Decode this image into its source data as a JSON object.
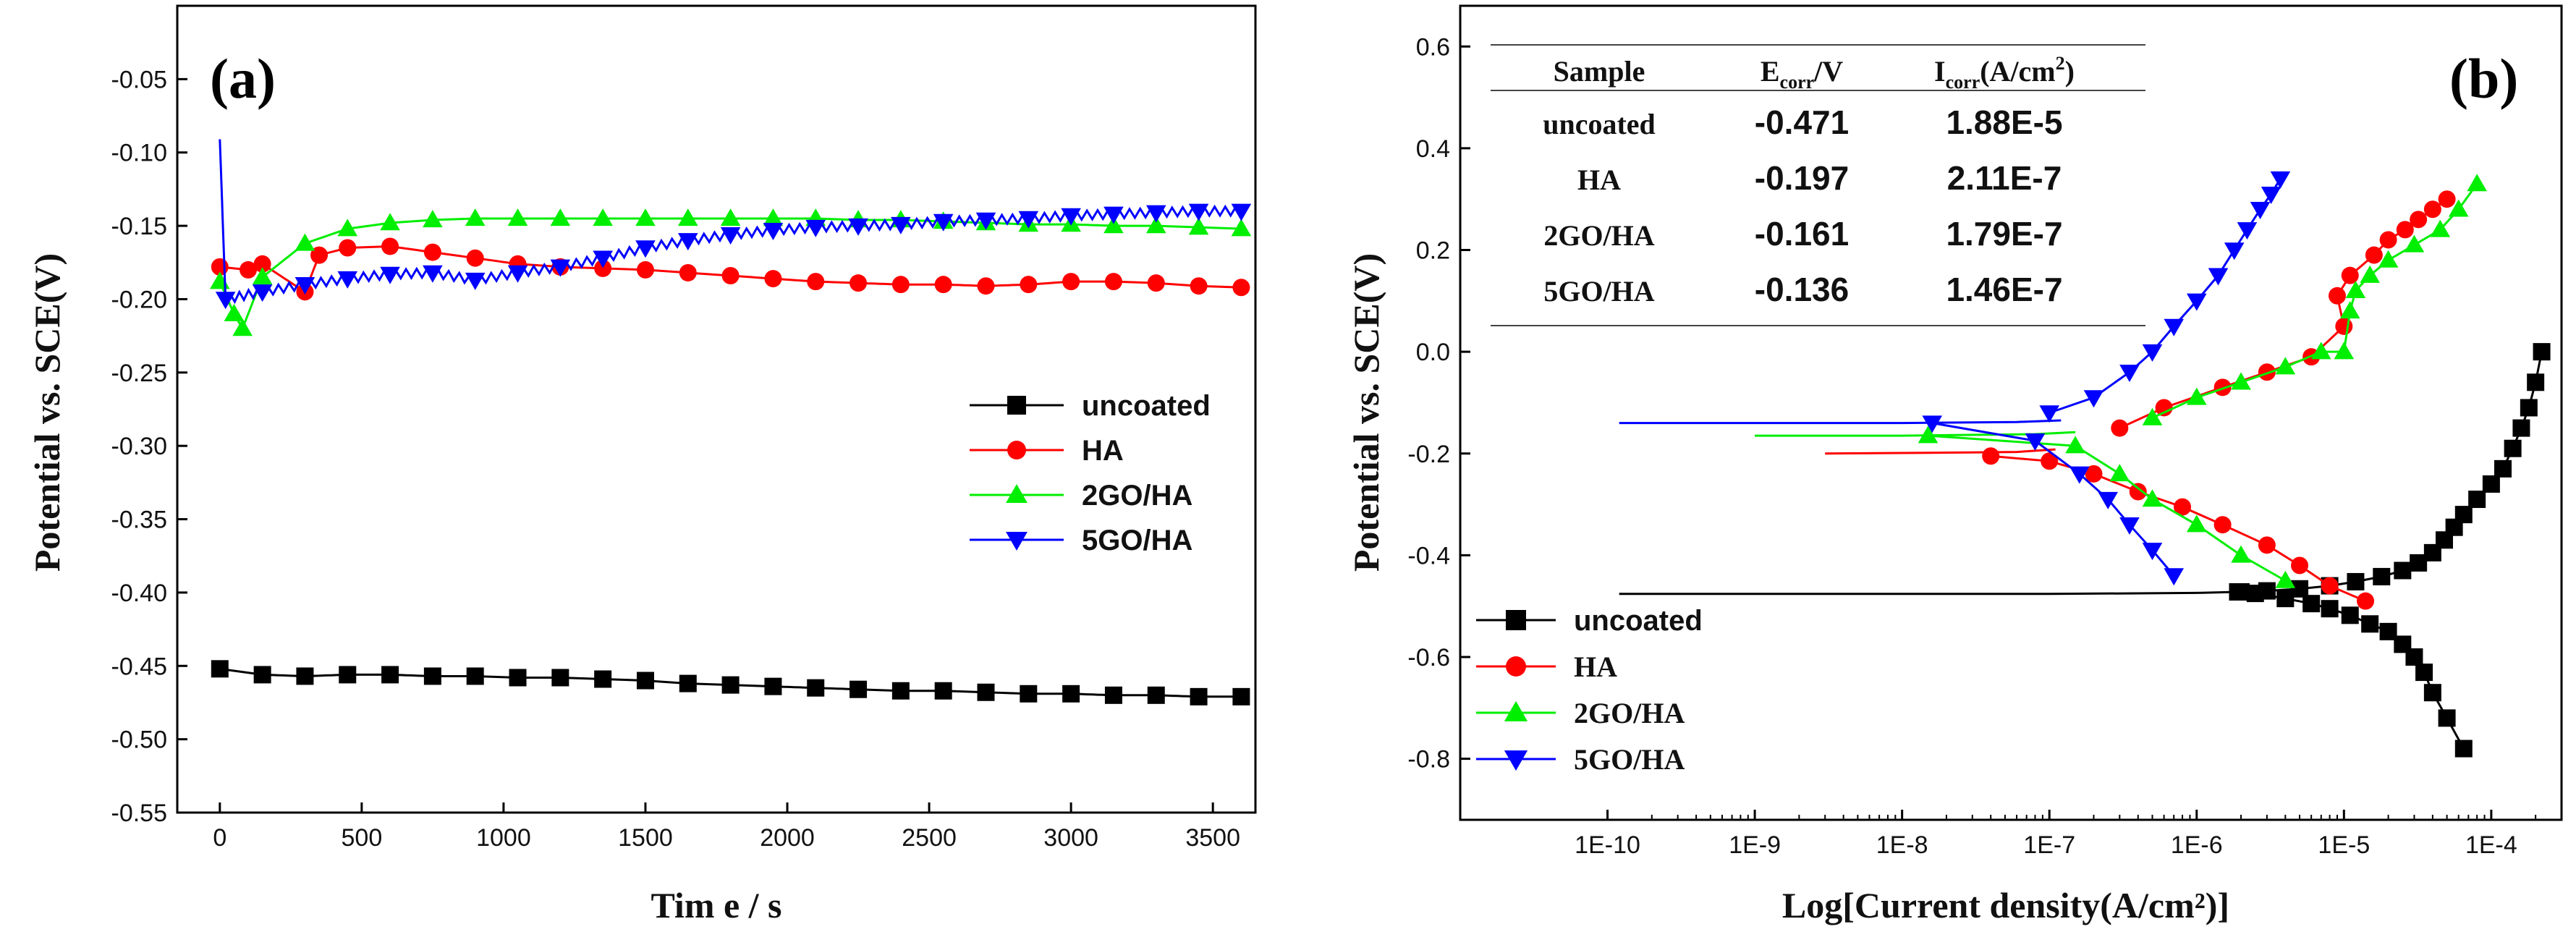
{
  "chart_data": [
    {
      "type": "line",
      "panel_label": "(a)",
      "xlabel": "Tim e / s",
      "ylabel": "Potential vs. SCE(V)",
      "xlim": [
        -150,
        3650
      ],
      "ylim": [
        -0.55,
        0.0
      ],
      "xticks": [
        0,
        500,
        1000,
        1500,
        2000,
        2500,
        3000,
        3500
      ],
      "xtick_labels": [
        "0",
        "500",
        "1000",
        "1500",
        "2000",
        "2500",
        "3000",
        "3500"
      ],
      "yticks": [
        -0.05,
        -0.1,
        -0.15,
        -0.2,
        -0.25,
        -0.3,
        -0.35,
        -0.4,
        -0.45,
        -0.5,
        -0.55
      ],
      "ytick_labels": [
        "-0.05",
        "-0.10",
        "-0.15",
        "-0.20",
        "-0.25",
        "-0.30",
        "-0.35",
        "-0.40",
        "-0.45",
        "-0.50",
        "-0.55"
      ],
      "legend": "lower-right",
      "series": [
        {
          "name": "uncoated",
          "color": "#000000",
          "marker": "square",
          "x": [
            0,
            150,
            300,
            450,
            600,
            750,
            900,
            1050,
            1200,
            1350,
            1500,
            1650,
            1800,
            1950,
            2100,
            2250,
            2400,
            2550,
            2700,
            2850,
            3000,
            3150,
            3300,
            3450,
            3600
          ],
          "y": [
            -0.452,
            -0.456,
            -0.457,
            -0.456,
            -0.456,
            -0.457,
            -0.457,
            -0.458,
            -0.458,
            -0.459,
            -0.46,
            -0.462,
            -0.463,
            -0.464,
            -0.465,
            -0.466,
            -0.467,
            -0.467,
            -0.468,
            -0.469,
            -0.469,
            -0.47,
            -0.47,
            -0.471,
            -0.471
          ]
        },
        {
          "name": "HA",
          "color": "#ff0000",
          "marker": "circle",
          "x": [
            0,
            100,
            150,
            300,
            350,
            450,
            600,
            750,
            900,
            1050,
            1200,
            1350,
            1500,
            1650,
            1800,
            1950,
            2100,
            2250,
            2400,
            2550,
            2700,
            2850,
            3000,
            3150,
            3300,
            3450,
            3600
          ],
          "y": [
            -0.178,
            -0.18,
            -0.176,
            -0.195,
            -0.17,
            -0.165,
            -0.164,
            -0.168,
            -0.172,
            -0.176,
            -0.178,
            -0.179,
            -0.18,
            -0.182,
            -0.184,
            -0.186,
            -0.188,
            -0.189,
            -0.19,
            -0.19,
            -0.191,
            -0.19,
            -0.188,
            -0.188,
            -0.189,
            -0.191,
            -0.192
          ]
        },
        {
          "name": "2GO/HA",
          "color": "#00ee00",
          "marker": "triangle-up",
          "x": [
            0,
            50,
            80,
            150,
            300,
            450,
            600,
            750,
            900,
            1050,
            1200,
            1350,
            1500,
            1650,
            1800,
            1950,
            2100,
            2250,
            2400,
            2550,
            2700,
            2850,
            3000,
            3150,
            3300,
            3450,
            3600
          ],
          "y": [
            -0.188,
            -0.21,
            -0.22,
            -0.185,
            -0.162,
            -0.152,
            -0.148,
            -0.146,
            -0.145,
            -0.145,
            -0.145,
            -0.145,
            -0.145,
            -0.145,
            -0.145,
            -0.145,
            -0.145,
            -0.146,
            -0.146,
            -0.147,
            -0.148,
            -0.149,
            -0.149,
            -0.15,
            -0.15,
            -0.151,
            -0.152
          ]
        },
        {
          "name": "5GO/HA",
          "color": "#0000ff",
          "marker": "triangle-down",
          "x": [
            0,
            20,
            150,
            300,
            450,
            600,
            750,
            900,
            1050,
            1200,
            1350,
            1500,
            1650,
            1800,
            1950,
            2100,
            2250,
            2400,
            2550,
            2700,
            2850,
            3000,
            3150,
            3300,
            3450,
            3600
          ],
          "y": [
            -0.091,
            -0.2,
            -0.195,
            -0.19,
            -0.186,
            -0.183,
            -0.182,
            -0.187,
            -0.182,
            -0.178,
            -0.172,
            -0.165,
            -0.16,
            -0.156,
            -0.153,
            -0.151,
            -0.15,
            -0.149,
            -0.147,
            -0.146,
            -0.145,
            -0.143,
            -0.142,
            -0.141,
            -0.14,
            -0.14
          ]
        }
      ]
    },
    {
      "type": "line",
      "panel_label": "(b)",
      "xlabel": "Log[Current density(A/cm²)]",
      "ylabel": "Potential vs. SCE(V)",
      "xscale": "log",
      "xlim": [
        1e-11,
        0.0003
      ],
      "ylim": [
        -0.92,
        0.68
      ],
      "xticks": [
        1e-10,
        1e-09,
        1e-08,
        1e-07,
        1e-06,
        1e-05,
        0.0001
      ],
      "xtick_labels": [
        "1E-10",
        "1E-9",
        "1E-8",
        "1E-7",
        "1E-6",
        "1E-5",
        "1E-4"
      ],
      "yticks": [
        0.6,
        0.4,
        0.2,
        0.0,
        -0.2,
        -0.4,
        -0.6,
        -0.8
      ],
      "ytick_labels": [
        "0.6",
        "0.4",
        "0.2",
        "0.0",
        "-0.2",
        "-0.4",
        "-0.6",
        "-0.8"
      ],
      "legend": "lower-left",
      "series": [
        {
          "name": "uncoated",
          "color": "#000000",
          "marker": "square",
          "line_x": [
            1.2e-10,
            1e-08,
            1e-07,
            1e-06,
            1.9e-06
          ],
          "line_y": [
            -0.476,
            -0.476,
            -0.476,
            -0.474,
            -0.472
          ],
          "x": [
            1.9e-06,
            2.5e-06,
            4e-06,
            6e-06,
            8e-06,
            1.1e-05,
            1.5e-05,
            2e-05,
            2.5e-05,
            3e-05,
            3.5e-05,
            4e-05,
            5e-05,
            6.5e-05,
            2e-06,
            3e-06,
            5e-06,
            8e-06,
            1.2e-05,
            1.8e-05,
            2.5e-05,
            3.2e-05,
            4e-05,
            4.8e-05,
            5.6e-05,
            6.5e-05,
            8e-05,
            0.0001,
            0.00012,
            0.00014,
            0.00016,
            0.00018,
            0.0002,
            0.00022
          ],
          "y": [
            -0.472,
            -0.475,
            -0.485,
            -0.495,
            -0.505,
            -0.518,
            -0.535,
            -0.55,
            -0.575,
            -0.6,
            -0.63,
            -0.67,
            -0.72,
            -0.78,
            -0.472,
            -0.47,
            -0.466,
            -0.46,
            -0.452,
            -0.442,
            -0.43,
            -0.415,
            -0.395,
            -0.37,
            -0.345,
            -0.32,
            -0.29,
            -0.26,
            -0.23,
            -0.19,
            -0.15,
            -0.11,
            -0.06,
            0.0
          ]
        },
        {
          "name": "HA",
          "color": "#ff0000",
          "marker": "circle",
          "line_x": [
            3e-09,
            3e-08,
            6e-08,
            1.1e-07
          ],
          "line_y": [
            -0.2,
            -0.198,
            -0.197,
            -0.192
          ],
          "x": [
            4e-08,
            1e-07,
            2e-07,
            4e-07,
            8e-07,
            1.5e-06,
            3e-06,
            5e-06,
            8e-06,
            1.4e-05,
            3e-07,
            6e-07,
            1.5e-06,
            3e-06,
            6e-06,
            1e-05,
            9e-06,
            1.1e-05,
            1.6e-05,
            2e-05,
            2.6e-05,
            3.2e-05,
            4e-05,
            5e-05
          ],
          "y": [
            -0.205,
            -0.215,
            -0.24,
            -0.275,
            -0.305,
            -0.34,
            -0.38,
            -0.42,
            -0.46,
            -0.49,
            -0.15,
            -0.11,
            -0.07,
            -0.04,
            -0.01,
            0.05,
            0.11,
            0.15,
            0.19,
            0.22,
            0.24,
            0.26,
            0.28,
            0.3
          ]
        },
        {
          "name": "2GO/HA",
          "color": "#00ee00",
          "marker": "triangle-up",
          "line_x": [
            1e-09,
            1e-08,
            8e-08,
            1.5e-07
          ],
          "line_y": [
            -0.165,
            -0.165,
            -0.162,
            -0.158
          ],
          "x": [
            1.5e-08,
            1.5e-07,
            3e-07,
            5e-07,
            1e-06,
            2e-06,
            4e-06,
            5e-07,
            1e-06,
            2e-06,
            4e-06,
            7e-06,
            1e-05,
            1.1e-05,
            1.2e-05,
            1.5e-05,
            2e-05,
            3e-05,
            4.5e-05,
            6e-05,
            8e-05
          ],
          "y": [
            -0.165,
            -0.185,
            -0.24,
            -0.29,
            -0.34,
            -0.4,
            -0.45,
            -0.13,
            -0.09,
            -0.06,
            -0.03,
            0.0,
            0.0,
            0.08,
            0.12,
            0.15,
            0.18,
            0.21,
            0.24,
            0.28,
            0.33
          ]
        },
        {
          "name": "5GO/HA",
          "color": "#0000ff",
          "marker": "triangle-down",
          "line_x": [
            1.2e-10,
            1e-09,
            1e-08,
            6e-08,
            1.2e-07
          ],
          "line_y": [
            -0.14,
            -0.14,
            -0.14,
            -0.138,
            -0.135
          ],
          "x": [
            1.6e-08,
            8e-08,
            1.6e-07,
            2.5e-07,
            3.5e-07,
            5e-07,
            7e-07,
            1e-07,
            2e-07,
            3.5e-07,
            5e-07,
            7e-07,
            1e-06,
            1.4e-06,
            1.8e-06,
            2.2e-06,
            2.7e-06,
            3.2e-06,
            3.7e-06
          ],
          "y": [
            -0.14,
            -0.175,
            -0.24,
            -0.29,
            -0.34,
            -0.39,
            -0.44,
            -0.12,
            -0.09,
            -0.04,
            0.0,
            0.05,
            0.1,
            0.15,
            0.2,
            0.24,
            0.28,
            0.31,
            0.34
          ]
        }
      ],
      "table": {
        "headers": [
          "Sample",
          "E",
          "corr",
          "/V",
          "I",
          "corr",
          "(A/cm",
          "2",
          ")"
        ],
        "rows": [
          [
            "uncoated",
            "-0.471",
            "1.88E-5"
          ],
          [
            "HA",
            "-0.197",
            "2.11E-7"
          ],
          [
            "2GO/HA",
            "-0.161",
            "1.79E-7"
          ],
          [
            "5GO/HA",
            "-0.136",
            "1.46E-7"
          ]
        ]
      }
    }
  ]
}
